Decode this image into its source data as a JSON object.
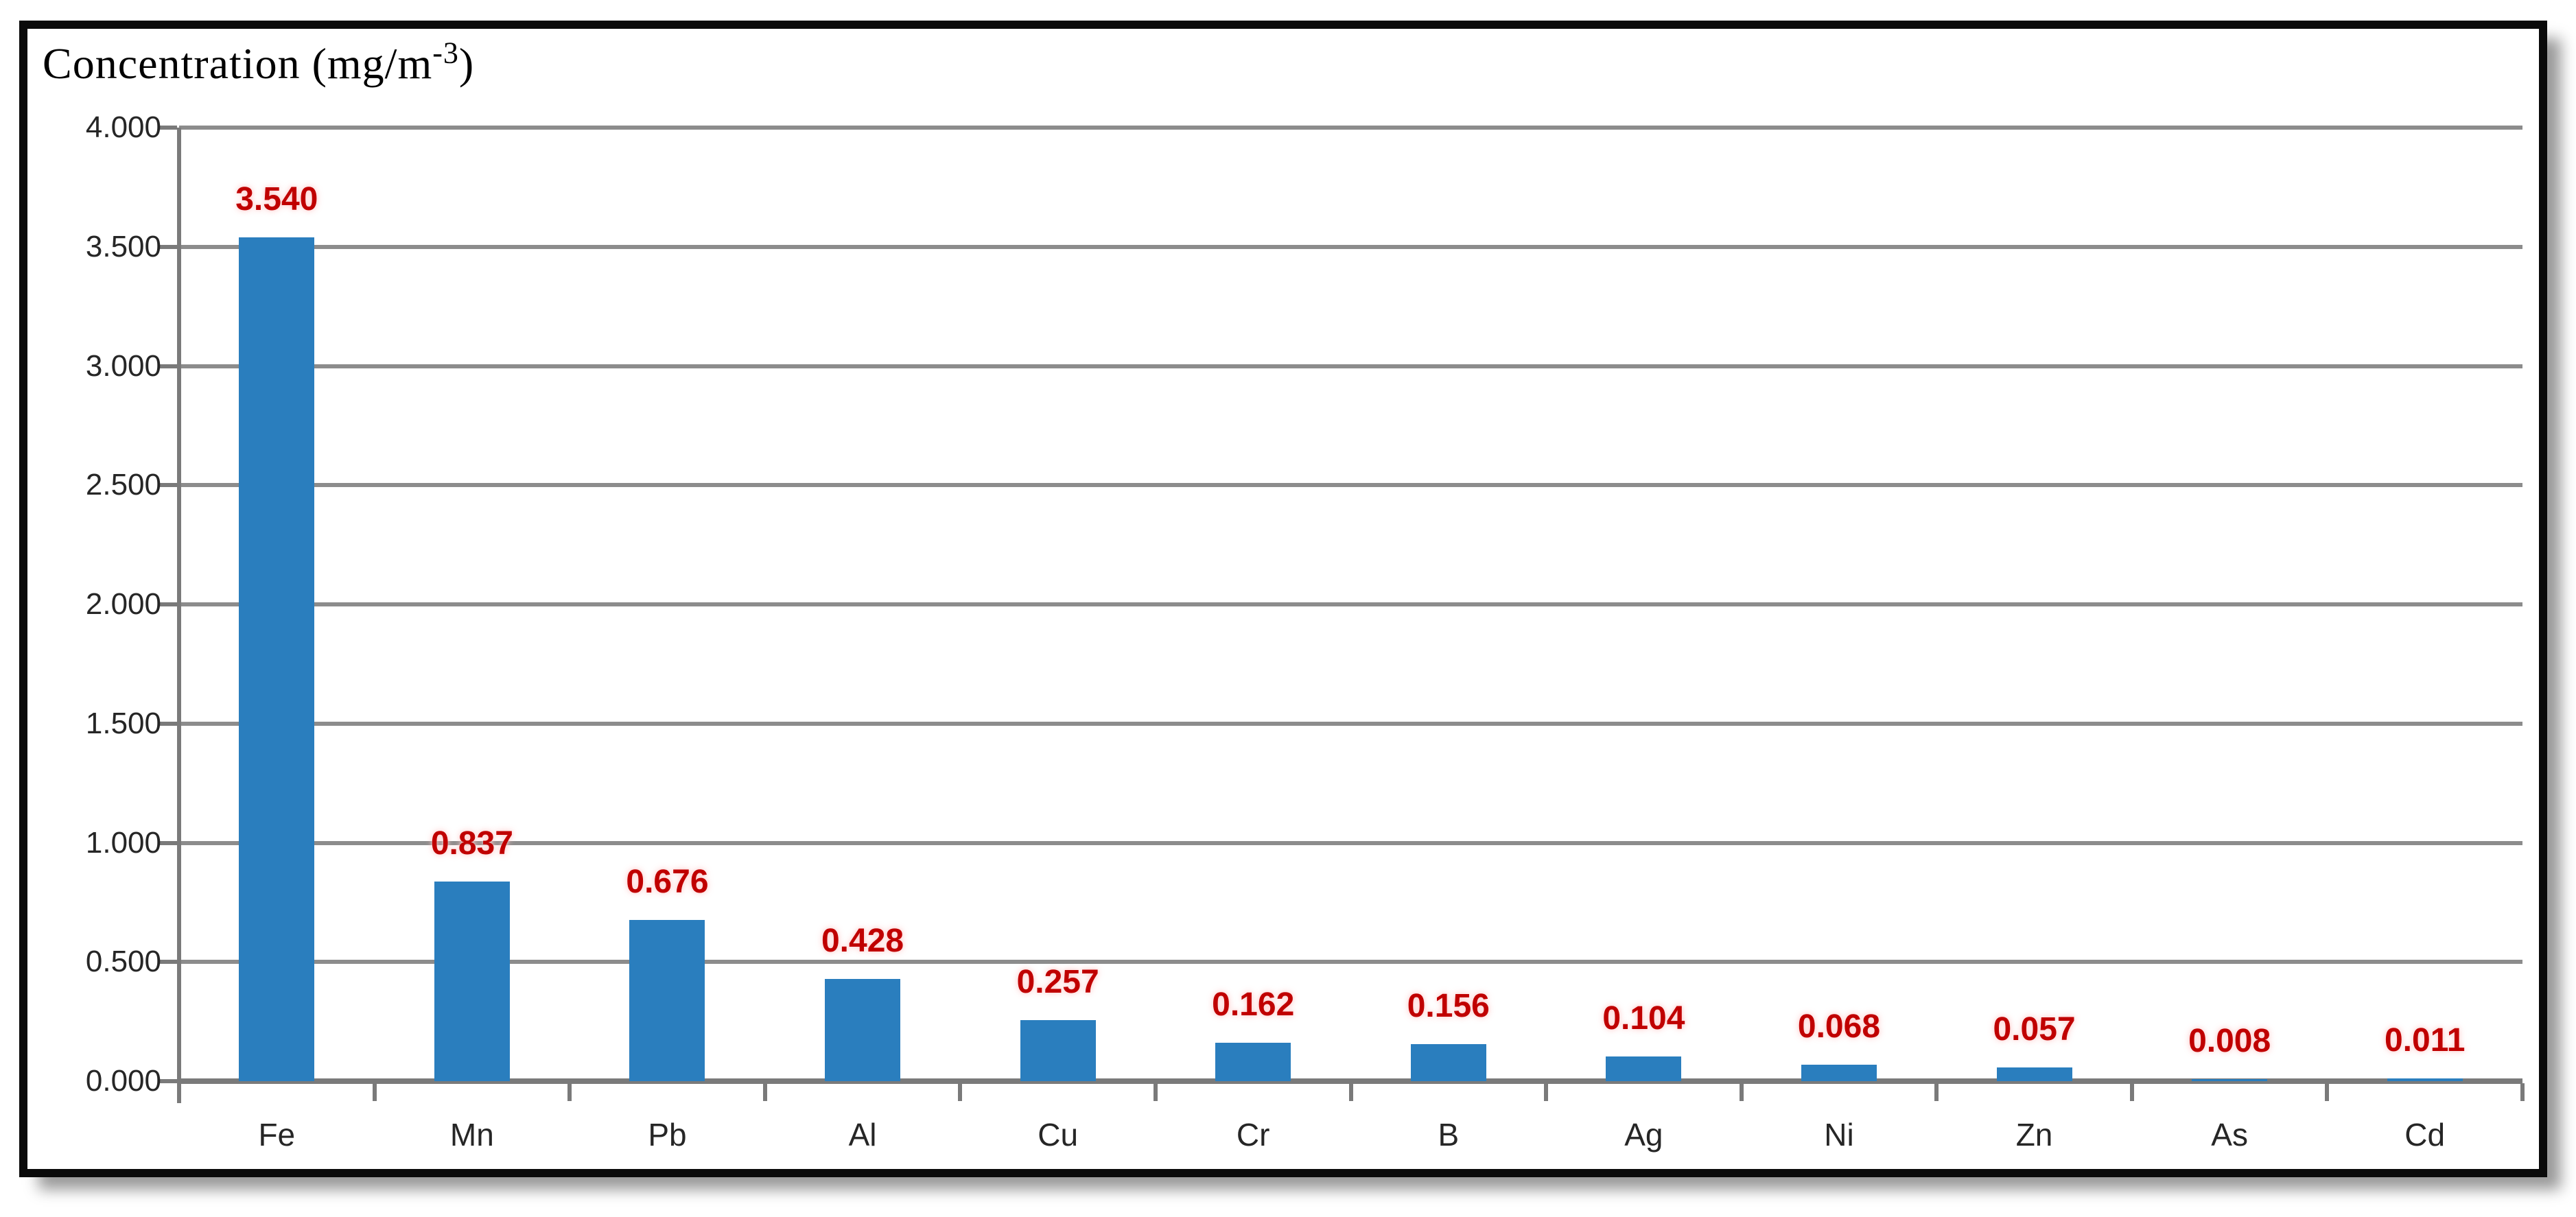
{
  "title": {
    "prefix": "Concentration (mg/m",
    "superscript": "-3",
    "suffix": ")"
  },
  "chart_data": {
    "type": "bar",
    "title": "Concentration (mg/m-3)",
    "ylabel": "Concentration (mg/m-3)",
    "xlabel": "",
    "categories": [
      "Fe",
      "Mn",
      "Pb",
      "Al",
      "Cu",
      "Cr",
      "B",
      "Ag",
      "Ni",
      "Zn",
      "As",
      "Cd"
    ],
    "values": [
      3.54,
      0.837,
      0.676,
      0.428,
      0.257,
      0.162,
      0.156,
      0.104,
      0.068,
      0.057,
      0.008,
      0.011
    ],
    "bar_labels": [
      "3.540",
      "0.837",
      "0.676",
      "0.428",
      "0.257",
      "0.162",
      "0.156",
      "0.104",
      "0.068",
      "0.057",
      "0.008",
      "0.011"
    ],
    "y_tick_labels": [
      "4.000",
      "3.500",
      "3.000",
      "2.500",
      "2.000",
      "1.500",
      "1.000",
      "0.500",
      "0.000"
    ],
    "ylim": [
      0,
      4
    ],
    "y_step": 0.5,
    "grid": true,
    "legend": "none",
    "colors": {
      "bar": "#2A7EBE",
      "bar_label": "#C00000",
      "gridline": "#8C8C8C",
      "axis_line": "#7A7A7A",
      "tick_label": "#262626",
      "frame_border": "#000000",
      "background": "#FFFFFF"
    }
  }
}
